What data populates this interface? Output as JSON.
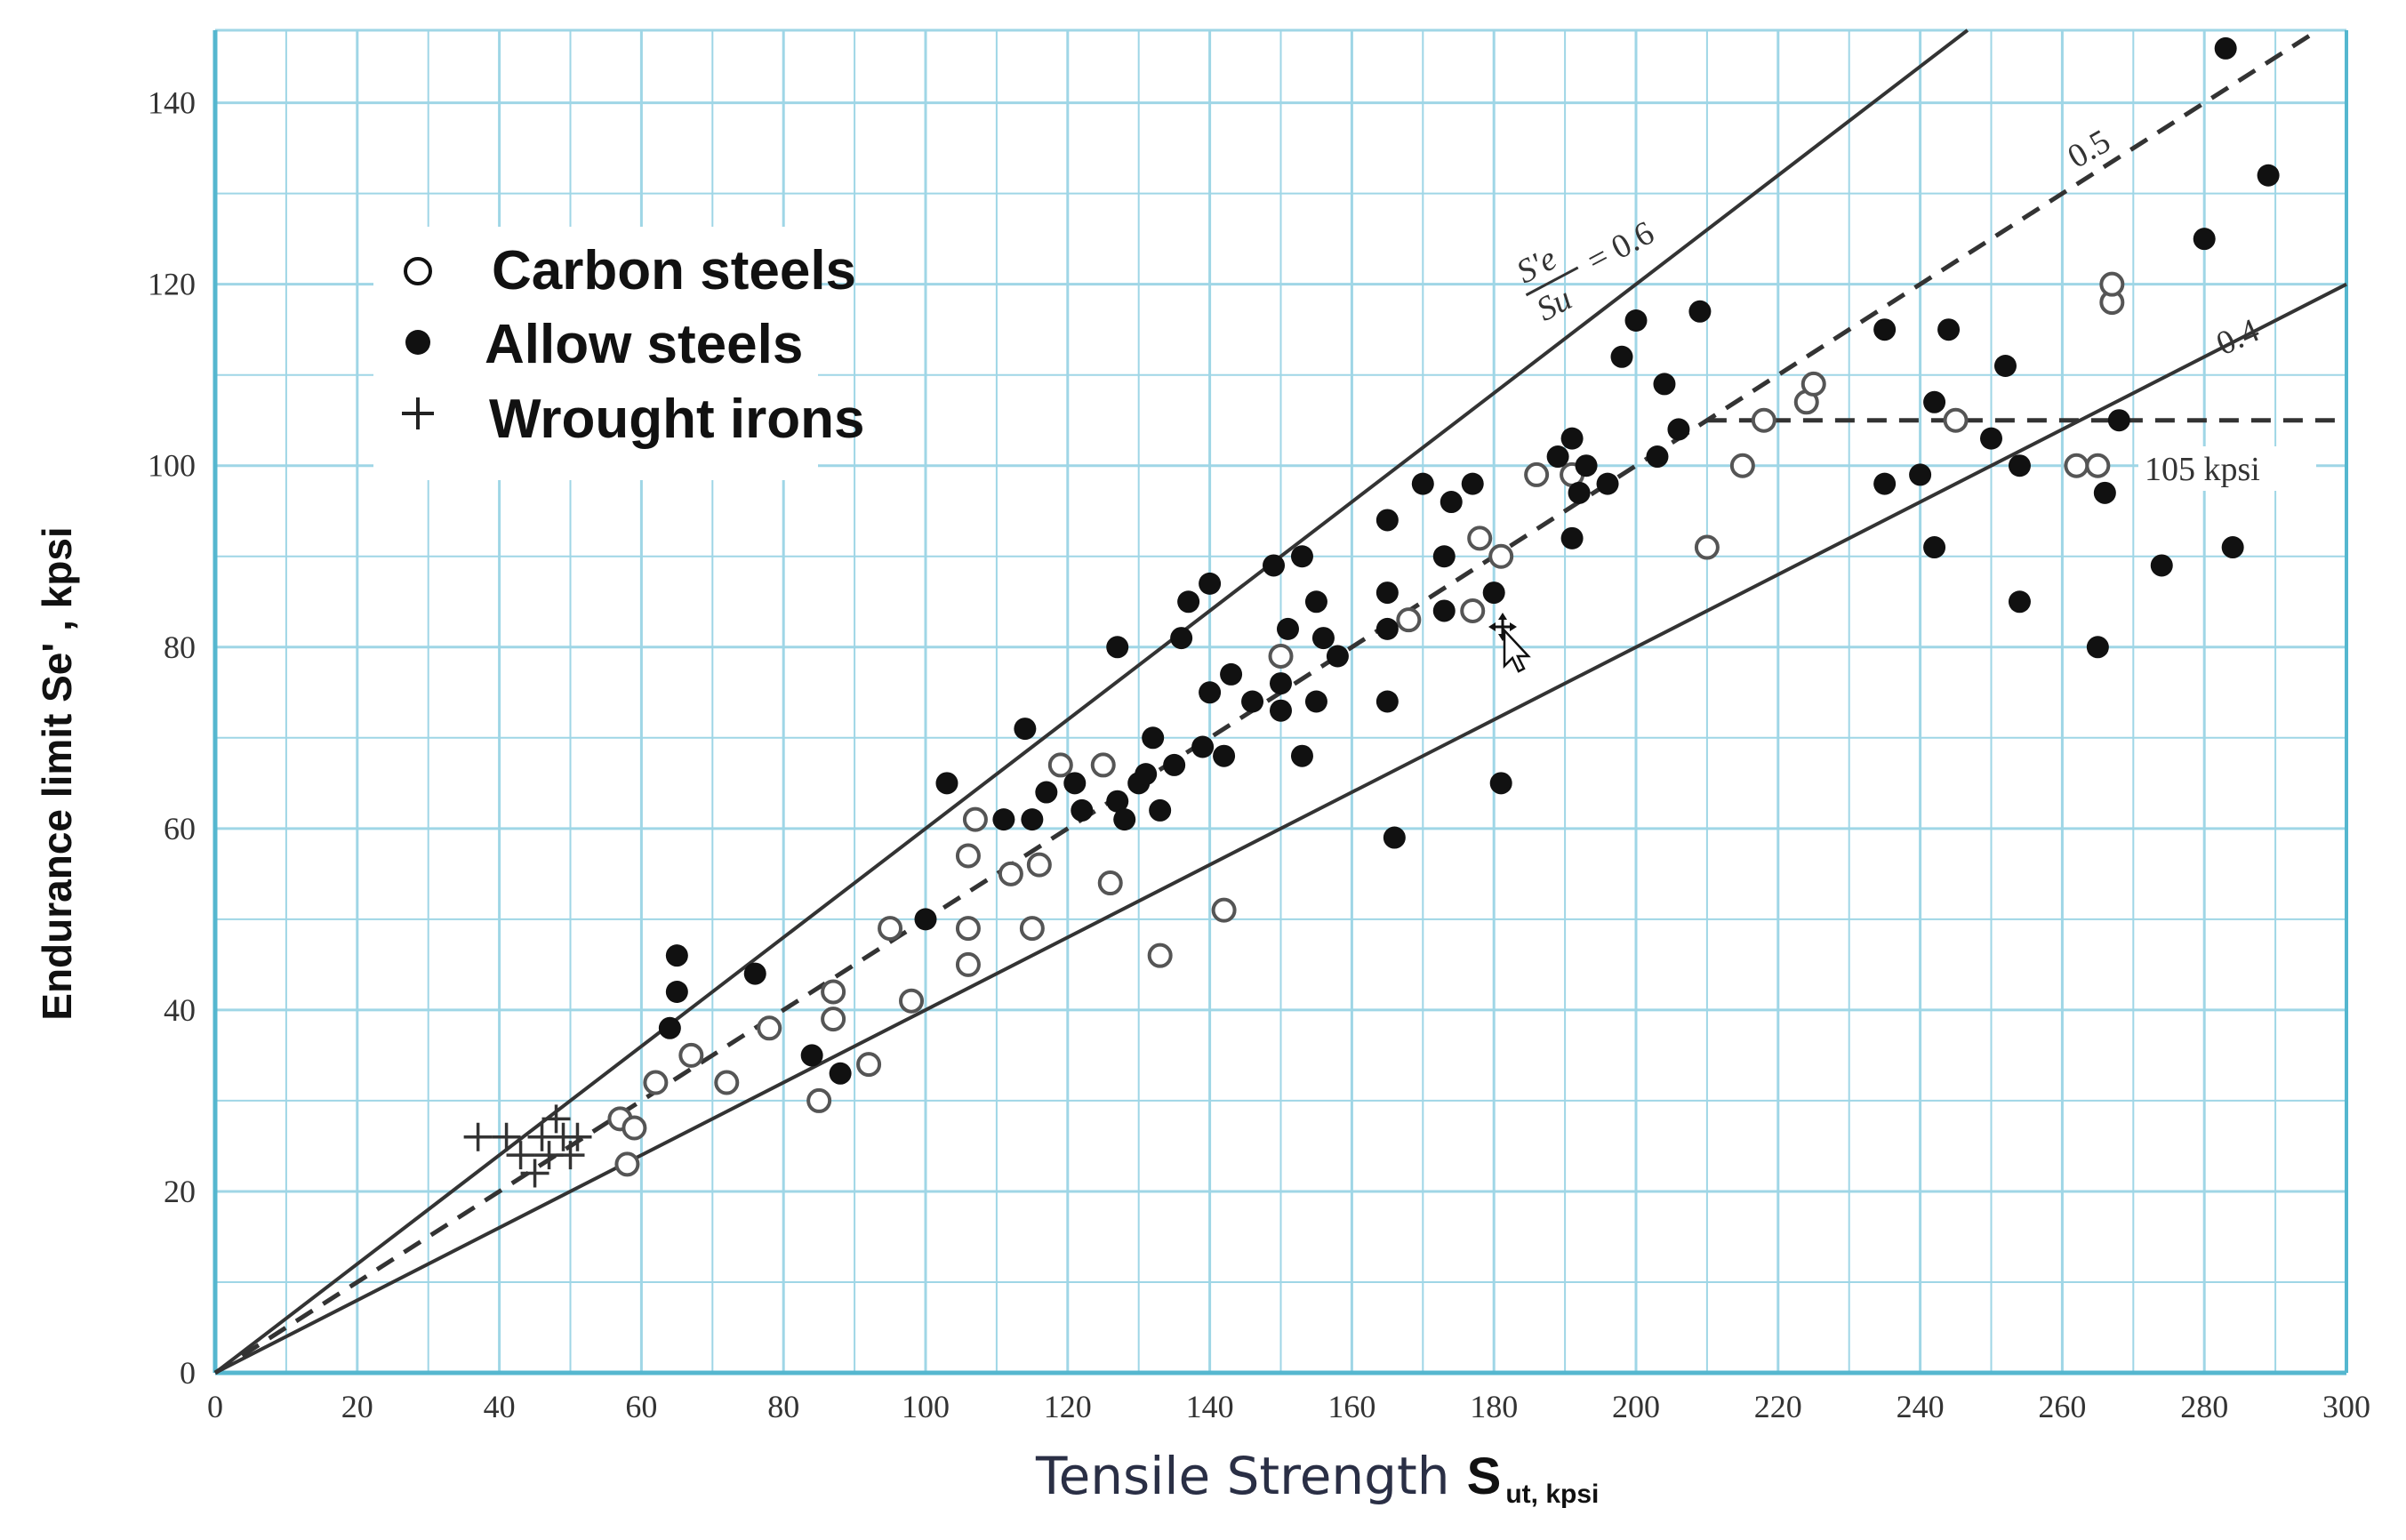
{
  "chart_data": {
    "type": "scatter",
    "xlabel": "Tensile Strength",
    "xlabel_symbol": "S",
    "xlabel_subscript": "ut, kpsi",
    "ylabel": "Endurance limit Se' , kpsi",
    "xlim": [
      0,
      300
    ],
    "ylim": [
      0,
      148
    ],
    "x_ticks": [
      "0",
      "20",
      "40",
      "60",
      "80",
      "100",
      "120",
      "140",
      "160",
      "180",
      "200",
      "220",
      "240",
      "260",
      "280",
      "300"
    ],
    "y_ticks": [
      "0",
      "20",
      "40",
      "60",
      "80",
      "100",
      "120",
      "140"
    ],
    "grid": true,
    "legend_position": "top-left",
    "legend": [
      {
        "label": "Carbon steels",
        "marker": "open-circle"
      },
      {
        "label": "Allow steels",
        "marker": "filled-circle"
      },
      {
        "label": "Wrought irons",
        "marker": "plus"
      }
    ],
    "reference_lines": [
      {
        "label": "S'e/Su = 0.6",
        "slope": 0.6,
        "style": "solid"
      },
      {
        "label": "0.5",
        "slope": 0.5,
        "style": "dashed",
        "cap": 105
      },
      {
        "label": "0.4",
        "slope": 0.4,
        "style": "solid"
      }
    ],
    "annotations": {
      "ratio_numerator": "S'e",
      "ratio_denominator": "Su",
      "ratio_value": "= 0.6",
      "label_05": "0.5",
      "label_04": "0.4",
      "label_105": "105 kpsi"
    },
    "series": [
      {
        "name": "Carbon steels",
        "marker": "open-circle",
        "points": [
          [
            57,
            28
          ],
          [
            58,
            23
          ],
          [
            59,
            27
          ],
          [
            62,
            32
          ],
          [
            67,
            35
          ],
          [
            72,
            32
          ],
          [
            78,
            38
          ],
          [
            85,
            30
          ],
          [
            87,
            39
          ],
          [
            87,
            42
          ],
          [
            92,
            34
          ],
          [
            95,
            49
          ],
          [
            98,
            41
          ],
          [
            106,
            45
          ],
          [
            106,
            49
          ],
          [
            106,
            57
          ],
          [
            107,
            61
          ],
          [
            112,
            55
          ],
          [
            115,
            49
          ],
          [
            116,
            56
          ],
          [
            119,
            67
          ],
          [
            125,
            67
          ],
          [
            126,
            54
          ],
          [
            133,
            46
          ],
          [
            142,
            51
          ],
          [
            150,
            79
          ],
          [
            168,
            83
          ],
          [
            177,
            84
          ],
          [
            178,
            92
          ],
          [
            181,
            90
          ],
          [
            186,
            99
          ],
          [
            191,
            99
          ],
          [
            210,
            91
          ],
          [
            215,
            100
          ],
          [
            218,
            105
          ],
          [
            224,
            107
          ],
          [
            225,
            109
          ],
          [
            245,
            105
          ],
          [
            262,
            100
          ],
          [
            265,
            100
          ],
          [
            267,
            118
          ],
          [
            267,
            120
          ]
        ]
      },
      {
        "name": "Allow steels",
        "marker": "filled-circle",
        "points": [
          [
            64,
            38
          ],
          [
            65,
            42
          ],
          [
            65,
            46
          ],
          [
            76,
            44
          ],
          [
            84,
            35
          ],
          [
            88,
            33
          ],
          [
            100,
            50
          ],
          [
            103,
            65
          ],
          [
            111,
            61
          ],
          [
            114,
            71
          ],
          [
            115,
            61
          ],
          [
            117,
            64
          ],
          [
            121,
            65
          ],
          [
            122,
            62
          ],
          [
            127,
            63
          ],
          [
            127,
            80
          ],
          [
            128,
            61
          ],
          [
            130,
            65
          ],
          [
            131,
            66
          ],
          [
            132,
            70
          ],
          [
            133,
            62
          ],
          [
            135,
            67
          ],
          [
            136,
            81
          ],
          [
            137,
            85
          ],
          [
            139,
            69
          ],
          [
            140,
            87
          ],
          [
            140,
            75
          ],
          [
            142,
            68
          ],
          [
            143,
            77
          ],
          [
            146,
            74
          ],
          [
            149,
            89
          ],
          [
            150,
            76
          ],
          [
            150,
            73
          ],
          [
            151,
            82
          ],
          [
            153,
            68
          ],
          [
            153,
            90
          ],
          [
            155,
            74
          ],
          [
            155,
            85
          ],
          [
            156,
            81
          ],
          [
            158,
            79
          ],
          [
            165,
            82
          ],
          [
            165,
            74
          ],
          [
            165,
            86
          ],
          [
            165,
            94
          ],
          [
            166,
            59
          ],
          [
            170,
            98
          ],
          [
            173,
            84
          ],
          [
            173,
            90
          ],
          [
            174,
            96
          ],
          [
            177,
            98
          ],
          [
            180,
            86
          ],
          [
            181,
            65
          ],
          [
            189,
            101
          ],
          [
            191,
            103
          ],
          [
            191,
            92
          ],
          [
            192,
            97
          ],
          [
            193,
            100
          ],
          [
            196,
            98
          ],
          [
            198,
            112
          ],
          [
            200,
            116
          ],
          [
            203,
            101
          ],
          [
            204,
            109
          ],
          [
            206,
            104
          ],
          [
            209,
            117
          ],
          [
            235,
            115
          ],
          [
            235,
            98
          ],
          [
            240,
            99
          ],
          [
            242,
            91
          ],
          [
            242,
            107
          ],
          [
            244,
            115
          ],
          [
            250,
            103
          ],
          [
            252,
            111
          ],
          [
            254,
            100
          ],
          [
            254,
            85
          ],
          [
            265,
            80
          ],
          [
            266,
            97
          ],
          [
            268,
            105
          ],
          [
            274,
            89
          ],
          [
            280,
            125
          ],
          [
            283,
            146
          ],
          [
            284,
            91
          ],
          [
            289,
            132
          ]
        ]
      },
      {
        "name": "Wrought irons",
        "marker": "plus",
        "points": [
          [
            37,
            26
          ],
          [
            41,
            26
          ],
          [
            43,
            24
          ],
          [
            45,
            22
          ],
          [
            46,
            26
          ],
          [
            47,
            24
          ],
          [
            48,
            28
          ],
          [
            49,
            26
          ],
          [
            50,
            24
          ],
          [
            51,
            26
          ]
        ]
      }
    ]
  }
}
